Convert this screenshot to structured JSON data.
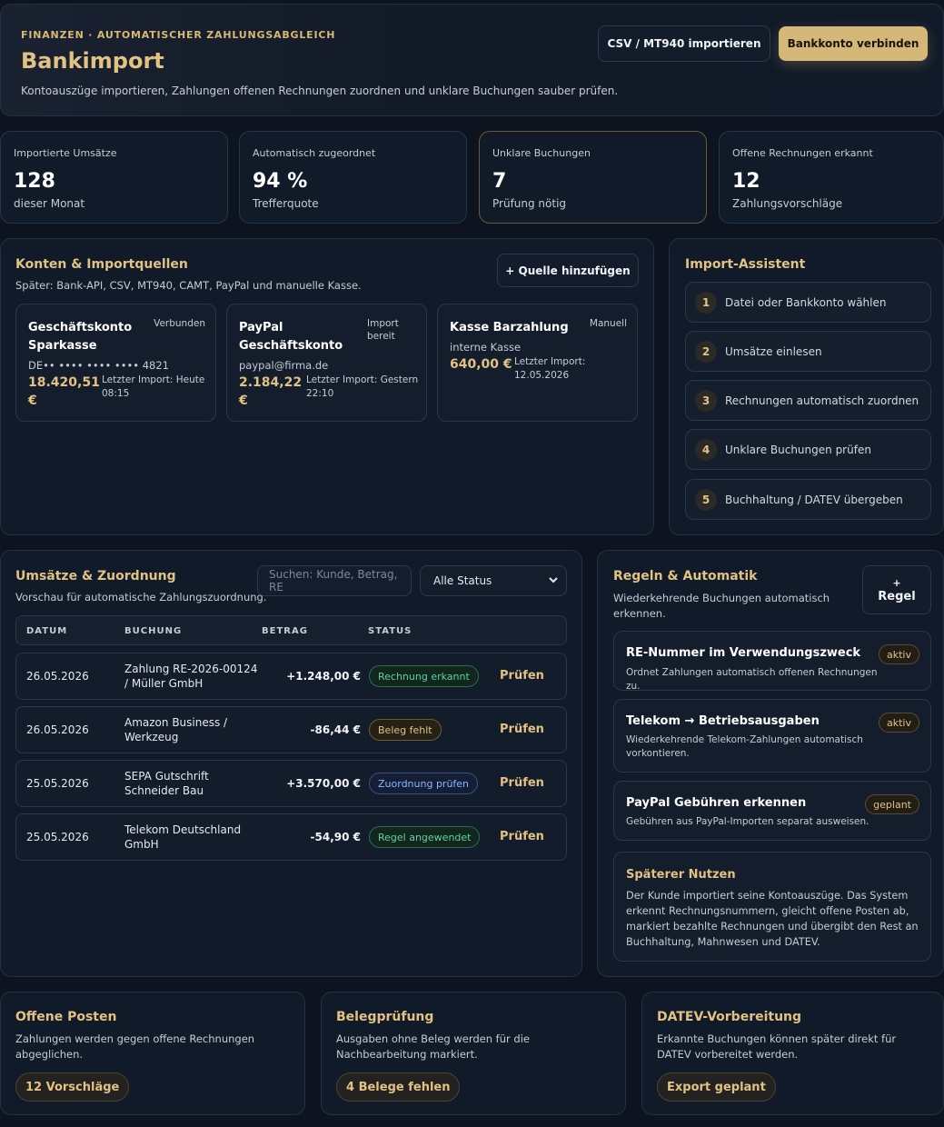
{
  "header": {
    "eyebrow": "FINANZEN · AUTOMATISCHER ZAHLUNGSABGLEICH",
    "title": "Bankimport",
    "description": "Kontoauszüge importieren, Zahlungen offenen Rechnungen zuordnen und unklare Buchungen sauber prüfen.",
    "import_button": "CSV / MT940 importieren",
    "connect_button": "Bankkonto verbinden"
  },
  "stats": [
    {
      "label": "Importierte Umsätze",
      "value": "128",
      "sub": "dieser Monat"
    },
    {
      "label": "Automatisch zugeordnet",
      "value": "94 %",
      "sub": "Trefferquote"
    },
    {
      "label": "Unklare Buchungen",
      "value": "7",
      "sub": "Prüfung nötig"
    },
    {
      "label": "Offene Rechnungen erkannt",
      "value": "12",
      "sub": "Zahlungsvorschläge"
    }
  ],
  "accounts_section": {
    "title": "Konten & Importquellen",
    "description": "Später: Bank-API, CSV, MT940, CAMT, PayPal und manuelle Kasse.",
    "add_button": "+ Quelle hinzufügen",
    "accounts": [
      {
        "name": "Geschäftskonto Sparkasse",
        "status": "Verbunden",
        "detail": "DE•• •••• •••• •••• 4821",
        "amount": "18.420,51 €",
        "last_import": "Letzter Import: Heute 08:15"
      },
      {
        "name": "PayPal Geschäftskonto",
        "status": "Import bereit",
        "detail": "paypal@firma.de",
        "amount": "2.184,22 €",
        "last_import": "Letzter Import: Gestern 22:10"
      },
      {
        "name": "Kasse Barzahlung",
        "status": "Manuell",
        "detail": "interne Kasse",
        "amount": "640,00 €",
        "last_import": "Letzter Import: 12.05.2026"
      }
    ]
  },
  "assistant": {
    "title": "Import-Assistent",
    "steps": [
      {
        "num": "1",
        "label": "Datei oder Bankkonto wählen"
      },
      {
        "num": "2",
        "label": "Umsätze einlesen"
      },
      {
        "num": "3",
        "label": "Rechnungen automatisch zuordnen"
      },
      {
        "num": "4",
        "label": "Unklare Buchungen prüfen"
      },
      {
        "num": "5",
        "label": "Buchhaltung / DATEV übergeben"
      }
    ]
  },
  "transactions": {
    "title": "Umsätze & Zuordnung",
    "description": "Vorschau für automatische Zahlungszuordnung.",
    "search_placeholder": "Suchen: Kunde, Betrag, RE",
    "status_filter": "Alle Status",
    "columns": [
      "DATUM",
      "BUCHUNG",
      "BETRAG",
      "STATUS"
    ],
    "rows": [
      {
        "date": "26.05.2026",
        "booking": "Zahlung RE-2026-00124 / Müller GmbH",
        "amount": "+1.248,00 €",
        "status": "Rechnung erkannt",
        "status_color": "#5fd39a",
        "action": "Prüfen"
      },
      {
        "date": "26.05.2026",
        "booking": "Amazon Business / Werkzeug",
        "amount": "-86,44 €",
        "status": "Beleg fehlt",
        "status_color": "#e2c283",
        "action": "Prüfen"
      },
      {
        "date": "25.05.2026",
        "booking": "SEPA Gutschrift Schneider Bau",
        "amount": "+3.570,00 €",
        "status": "Zuordnung prüfen",
        "status_color": "#8fb4ff",
        "action": "Prüfen"
      },
      {
        "date": "25.05.2026",
        "booking": "Telekom Deutschland GmbH",
        "amount": "-54,90 €",
        "status": "Regel angewendet",
        "status_color": "#5fd39a",
        "action": "Prüfen"
      }
    ]
  },
  "rules": {
    "title": "Regeln & Automatik",
    "description": "Wiederkehrende Buchungen automatisch erkennen.",
    "add_button_plus": "+",
    "add_button_label": "Regel",
    "items": [
      {
        "title": "RE-Nummer im Verwendungszweck",
        "description": "Ordnet Zahlungen automatisch offenen Rechnungen zu.",
        "tag": "aktiv"
      },
      {
        "title": "Telekom → Betriebsausgaben",
        "description": "Wiederkehrende Telekom-Zahlungen automatisch vorkontieren.",
        "tag": "aktiv"
      },
      {
        "title": "PayPal Gebühren erkennen",
        "description": "Gebühren aus PayPal-Importen separat ausweisen.",
        "tag": "geplant"
      }
    ],
    "note_title": "Späterer Nutzen",
    "note_text": "Der Kunde importiert seine Kontoauszüge. Das System erkennt Rechnungsnummern, gleicht offene Posten ab, markiert bezahlte Rechnungen und übergibt den Rest an Buchhaltung, Mahnwesen und DATEV."
  },
  "bottom_cards": [
    {
      "title": "Offene Posten",
      "description": "Zahlungen werden gegen offene Rechnungen abgeglichen.",
      "button": "12 Vorschläge"
    },
    {
      "title": "Belegprüfung",
      "description": "Ausgaben ohne Beleg werden für die Nachbearbeitung markiert.",
      "button": "4 Belege fehlen"
    },
    {
      "title": "DATEV-Vorbereitung",
      "description": "Erkannte Buchungen können später direkt für DATEV vorbereitet werden.",
      "button": "Export geplant"
    }
  ],
  "colors": {
    "accent_gold": "#d5b778",
    "background": "#0d1420",
    "success": "#5fd39a",
    "info": "#8fb4ff"
  }
}
